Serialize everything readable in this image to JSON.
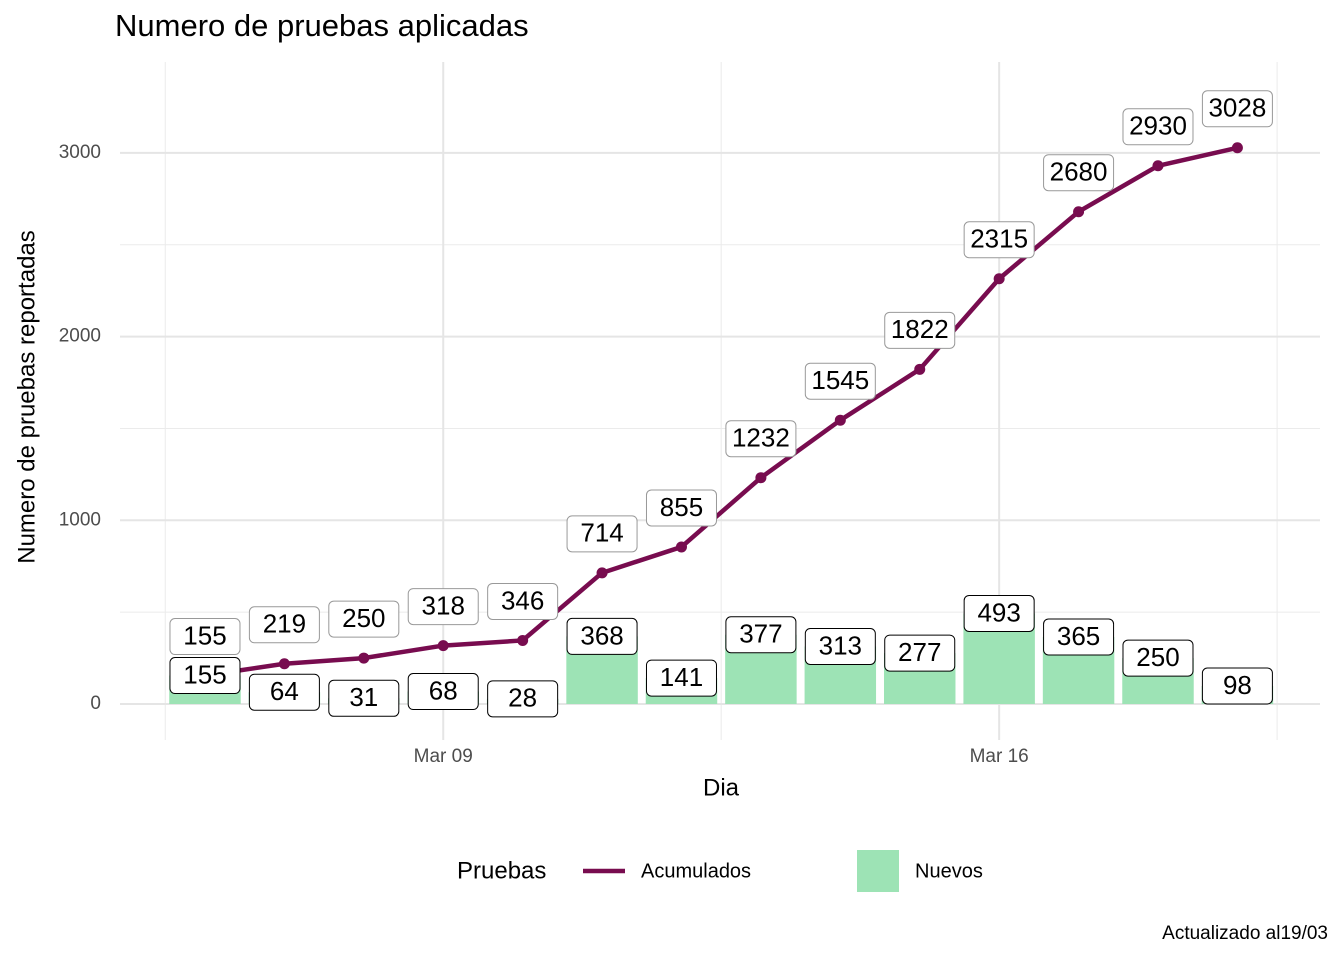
{
  "chart_data": {
    "type": "bar-line",
    "title": "Numero de pruebas aplicadas",
    "xlabel": "Dia",
    "ylabel": "Numero de pruebas reportadas",
    "caption": "Actualizado al19/03",
    "legend_title": "Pruebas",
    "legend": "bottom",
    "grid": true,
    "x": [
      6,
      7,
      8,
      9,
      10,
      11,
      12,
      13,
      14,
      15,
      16,
      17,
      18,
      19
    ],
    "xlim": [
      4.93,
      20.04
    ],
    "xticks": [
      {
        "value": 9,
        "label": "Mar 09"
      },
      {
        "value": 16,
        "label": "Mar 16"
      }
    ],
    "x_minor_grid": [
      5.5,
      12.5,
      19.5
    ],
    "ylim": [
      -196,
      3495
    ],
    "yticks": [
      0,
      1000,
      2000,
      3000
    ],
    "y_minor_grid": [
      500,
      1500,
      2500
    ],
    "series": [
      {
        "name": "Acumulados",
        "kind": "line",
        "color": "#780c4f",
        "values": [
          155,
          219,
          250,
          318,
          346,
          714,
          855,
          1232,
          1545,
          1822,
          2315,
          2680,
          2930,
          3028
        ]
      },
      {
        "name": "Nuevos",
        "kind": "bar",
        "color": "#9de3b5",
        "values": [
          155,
          64,
          31,
          68,
          28,
          368,
          141,
          377,
          313,
          277,
          493,
          365,
          250,
          98
        ]
      }
    ]
  }
}
